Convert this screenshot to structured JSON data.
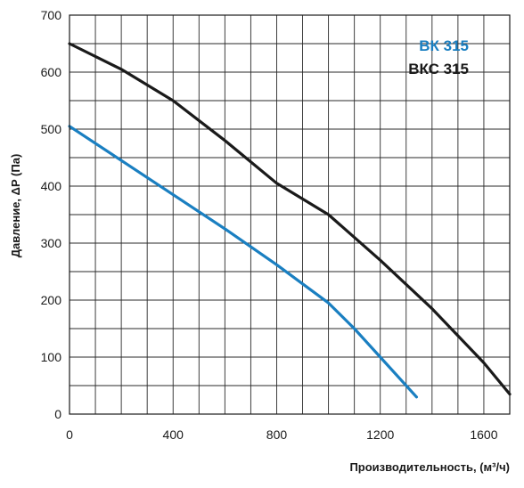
{
  "chart_data": {
    "type": "line",
    "xlabel": "Производительность, (м³/ч)",
    "ylabel": "Давление, ΔP (Па)",
    "xlim": [
      0,
      1700
    ],
    "ylim": [
      0,
      700
    ],
    "x_major_ticks": [
      0,
      400,
      800,
      1200,
      1600
    ],
    "x_tick_labels": [
      "0",
      "400",
      "800",
      "1200",
      "1600"
    ],
    "y_major_ticks": [
      0,
      100,
      200,
      300,
      400,
      500,
      600,
      700
    ],
    "y_tick_labels": [
      "0",
      "100",
      "200",
      "300",
      "400",
      "500",
      "600",
      "700"
    ],
    "x_grid_step": 100,
    "y_grid_step": 50,
    "grid": true,
    "legend_position": "top-right",
    "series": [
      {
        "name": "ВК 315",
        "color": "#1a7fc1",
        "x": [
          0,
          200,
          400,
          600,
          800,
          1000,
          1100,
          1200,
          1340
        ],
        "y": [
          505,
          445,
          385,
          325,
          262,
          195,
          150,
          100,
          30
        ]
      },
      {
        "name": "ВКС 315",
        "color": "#1a1a1a",
        "x": [
          0,
          200,
          400,
          600,
          800,
          1000,
          1200,
          1400,
          1600,
          1700
        ],
        "y": [
          650,
          605,
          550,
          480,
          405,
          350,
          270,
          185,
          90,
          35
        ]
      }
    ]
  }
}
